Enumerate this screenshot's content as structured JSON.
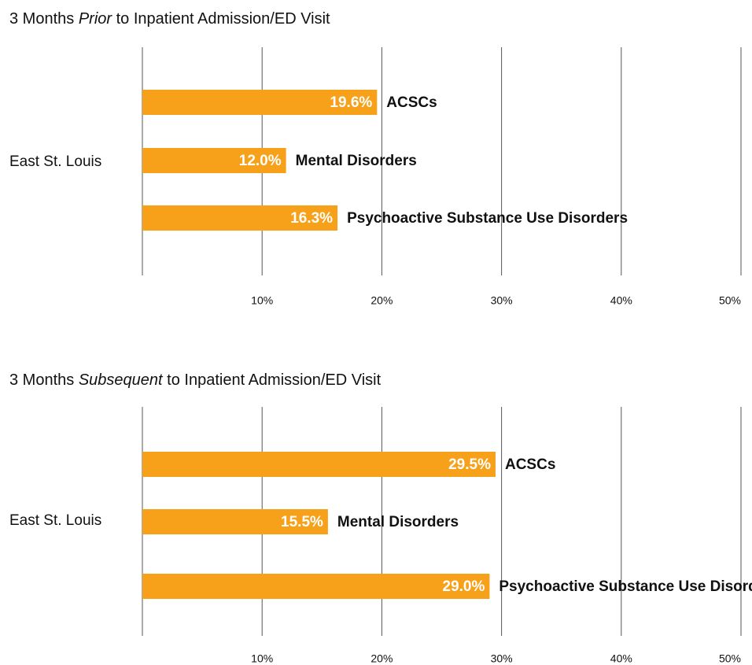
{
  "chart_data": [
    {
      "type": "bar",
      "orientation": "horizontal",
      "title": {
        "before": "3 Months",
        "emphasis": "Prior",
        "after": "to Inpatient Admission/ED Visit"
      },
      "categories": [
        "East St. Louis"
      ],
      "series": [
        {
          "name": "ACSCs",
          "color": "#f7a11a",
          "values": [
            19.6
          ],
          "value_labels": [
            "19.6%"
          ]
        },
        {
          "name": "Mental Disorders",
          "color": "#f7a11a",
          "values": [
            12.0
          ],
          "value_labels": [
            "12.0%"
          ]
        },
        {
          "name": "Psychoactive Substance Use Disorders",
          "color": "#f7a11a",
          "values": [
            16.3
          ],
          "value_labels": [
            "16.3%"
          ]
        }
      ],
      "xlim": [
        0,
        50
      ],
      "xticks": [
        {
          "value": 10,
          "label": "10%"
        },
        {
          "value": 20,
          "label": "20%"
        },
        {
          "value": 30,
          "label": "30%"
        },
        {
          "value": 40,
          "label": "40%"
        },
        {
          "value": 50,
          "label": "50%"
        }
      ],
      "grid": true
    },
    {
      "type": "bar",
      "orientation": "horizontal",
      "title": {
        "before": "3 Months",
        "emphasis": "Subsequent",
        "after": "to Inpatient Admission/ED Visit"
      },
      "categories": [
        "East St. Louis"
      ],
      "series": [
        {
          "name": "ACSCs",
          "color": "#f7a11a",
          "values": [
            29.5
          ],
          "value_labels": [
            "29.5%"
          ]
        },
        {
          "name": "Mental Disorders",
          "color": "#f7a11a",
          "values": [
            15.5
          ],
          "value_labels": [
            "15.5%"
          ]
        },
        {
          "name": "Psychoactive Substance Use Disorders",
          "color": "#f7a11a",
          "values": [
            29.0
          ],
          "value_labels": [
            "29.0%"
          ]
        }
      ],
      "xlim": [
        0,
        50
      ],
      "xticks": [
        {
          "value": 10,
          "label": "10%"
        },
        {
          "value": 20,
          "label": "20%"
        },
        {
          "value": 30,
          "label": "30%"
        },
        {
          "value": 40,
          "label": "40%"
        },
        {
          "value": 50,
          "label": "50%"
        }
      ],
      "grid": true
    }
  ]
}
